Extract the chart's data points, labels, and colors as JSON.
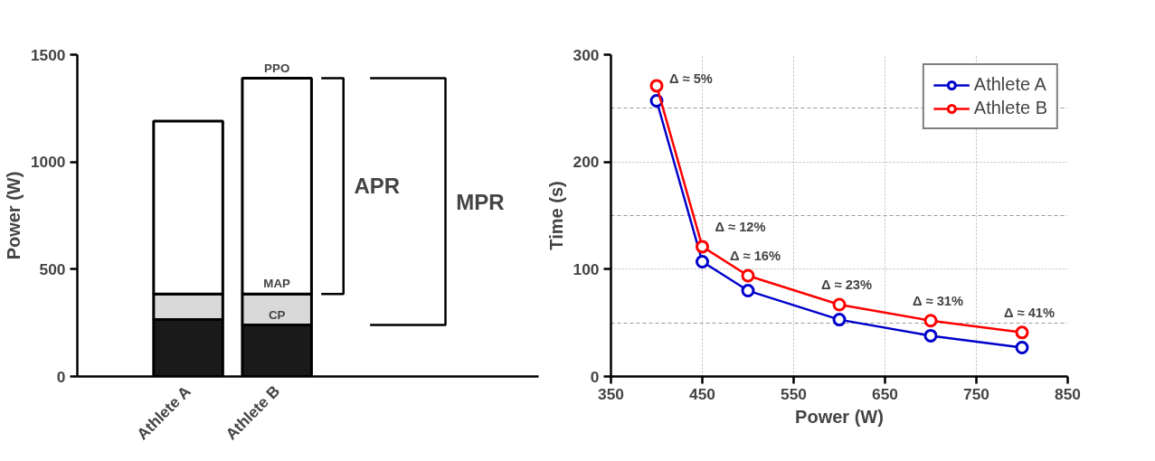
{
  "chart_data": [
    {
      "type": "bar",
      "stacked": true,
      "categories": [
        "Athlete A",
        "Athlete B"
      ],
      "ylabel": "Power (W)",
      "ylim": [
        0,
        1500
      ],
      "yticks": [
        0,
        500,
        1000,
        1500
      ],
      "grid": false,
      "legend": false,
      "series": [
        {
          "color": "#1a1a1a",
          "values": [
            265,
            240
          ]
        },
        {
          "color": "#d9d9d9",
          "values": [
            120,
            145
          ]
        },
        {
          "color": "#ffffff",
          "values": [
            805,
            1005
          ]
        }
      ],
      "annotations": [
        {
          "text": "PPO",
          "x": "Athlete B",
          "y": 1390
        },
        {
          "text": "MAP",
          "x": "Athlete B",
          "y": 385
        },
        {
          "text": "CP",
          "x": "Athlete B",
          "y": 240
        },
        "APR",
        "MPR"
      ]
    },
    {
      "type": "line",
      "xlabel": "Power (W)",
      "ylabel": "Time (s)",
      "x": [
        400,
        450,
        500,
        600,
        700,
        800
      ],
      "xlim": [
        350,
        850
      ],
      "xticks": [
        350,
        450,
        550,
        650,
        750,
        850
      ],
      "ylim": [
        0,
        300
      ],
      "yticks": [
        0,
        100,
        200,
        300
      ],
      "grid": true,
      "legend": "top right",
      "marker": "circle",
      "line_style": "solid",
      "series": [
        {
          "name": "Athlete A",
          "color": "#0000cc",
          "values": [
            257,
            107,
            80,
            53,
            38,
            27
          ]
        },
        {
          "name": "Athlete B",
          "color": "#ff0000",
          "values": [
            271,
            121,
            94,
            67,
            52,
            41
          ]
        }
      ],
      "annotations": [
        "Δ ≈ 5%",
        "Δ ≈ 12%",
        "Δ ≈ 16%",
        "Δ ≈ 23%",
        "Δ ≈ 31%",
        "Δ ≈ 41%"
      ]
    }
  ]
}
